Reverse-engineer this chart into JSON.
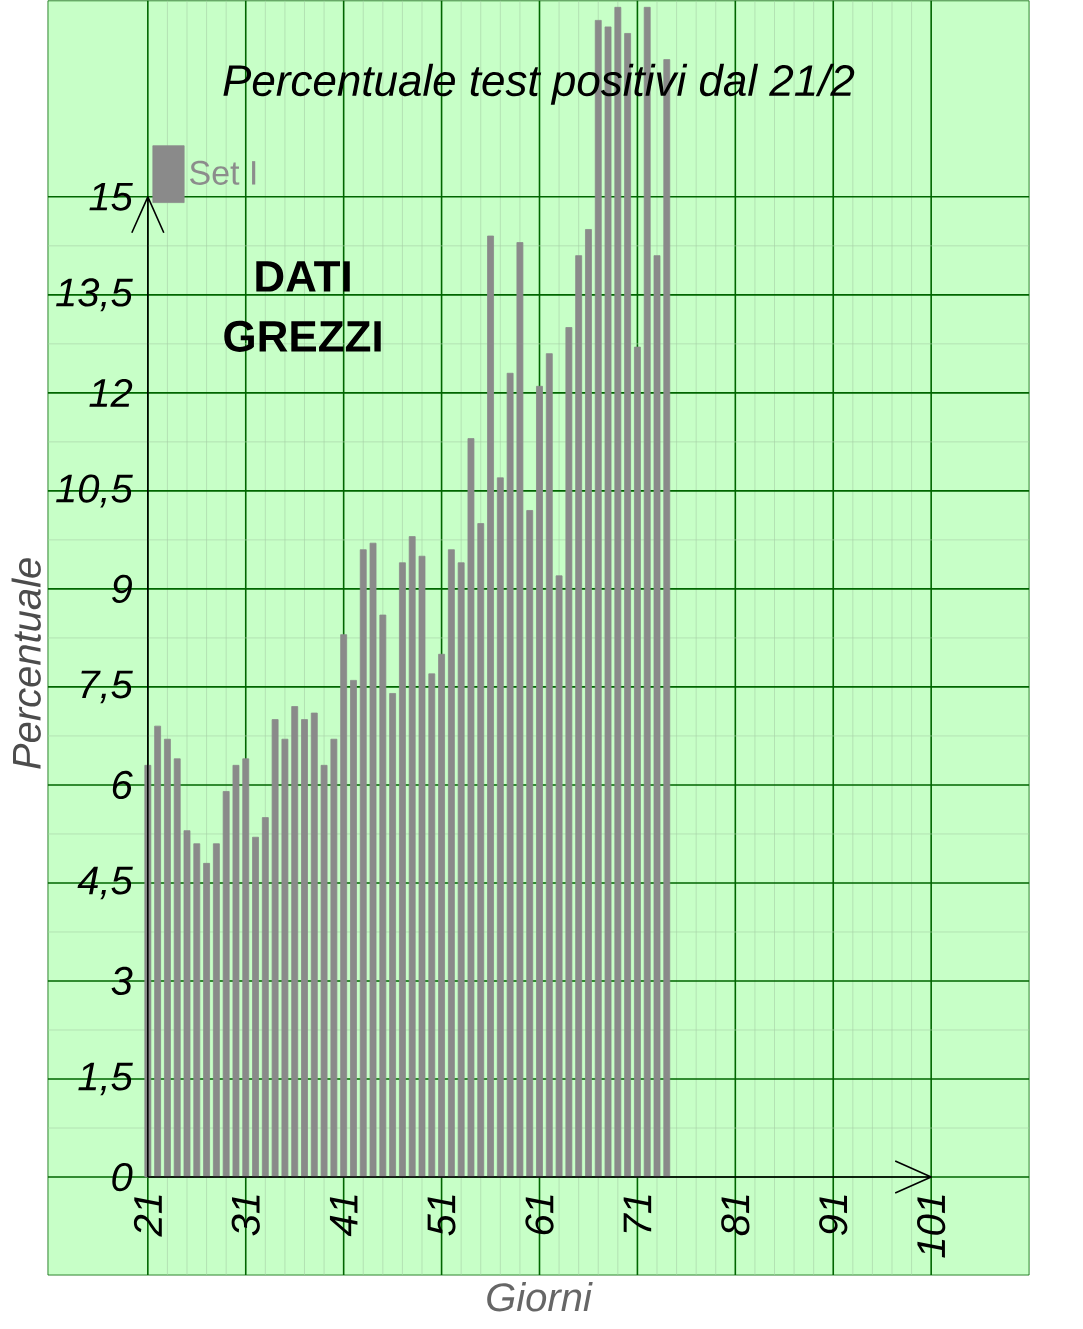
{
  "chart_data": {
    "type": "bar",
    "title": "Percentuale test positivi dal 21/2",
    "xlabel": "Giorni",
    "ylabel": "Percentuale",
    "annotations": [
      "DATI GREZZI"
    ],
    "x": [
      21,
      22,
      23,
      24,
      25,
      26,
      27,
      28,
      29,
      30,
      31,
      32,
      33,
      34,
      35,
      36,
      37,
      38,
      39,
      40,
      41,
      42,
      43,
      44,
      45,
      46,
      47,
      48,
      49,
      50,
      51,
      52,
      53,
      54,
      55,
      56,
      57,
      58,
      59,
      60,
      61,
      62,
      63,
      64,
      65,
      66,
      67,
      68,
      69,
      70,
      71,
      72,
      73,
      74
    ],
    "series": [
      {
        "name": "Set I",
        "color": "#8a8a8a",
        "values": [
          6.3,
          6.9,
          6.7,
          6.4,
          5.3,
          5.1,
          4.8,
          5.1,
          5.9,
          6.3,
          6.4,
          5.2,
          5.5,
          7.0,
          6.7,
          7.2,
          7.0,
          7.1,
          6.3,
          6.7,
          8.3,
          7.6,
          9.6,
          9.7,
          8.6,
          7.4,
          9.4,
          9.8,
          9.5,
          7.7,
          8.0,
          9.6,
          9.4,
          11.3,
          10.0,
          14.4,
          10.7,
          12.3,
          14.3,
          10.2,
          12.1,
          12.6,
          9.2,
          13.0,
          14.1,
          14.5,
          17.7,
          17.6,
          17.9,
          17.5,
          12.7,
          17.9,
          14.1,
          17.1
        ]
      }
    ],
    "xlim": [
      10.8,
      111
    ],
    "ylim": [
      -1.5,
      18
    ],
    "xticks": [
      21,
      31,
      41,
      51,
      61,
      71,
      81,
      91,
      101
    ],
    "yticks": [
      0,
      {
        "value": 1.5,
        "label": "1,5"
      },
      3,
      {
        "value": 4.5,
        "label": "4,5"
      },
      6,
      {
        "value": 7.5,
        "label": "7,5"
      },
      9,
      {
        "value": 10.5,
        "label": "10,5"
      },
      12,
      {
        "value": 13.5,
        "label": "13,5"
      },
      15
    ],
    "legend": "top left",
    "grid": true
  }
}
